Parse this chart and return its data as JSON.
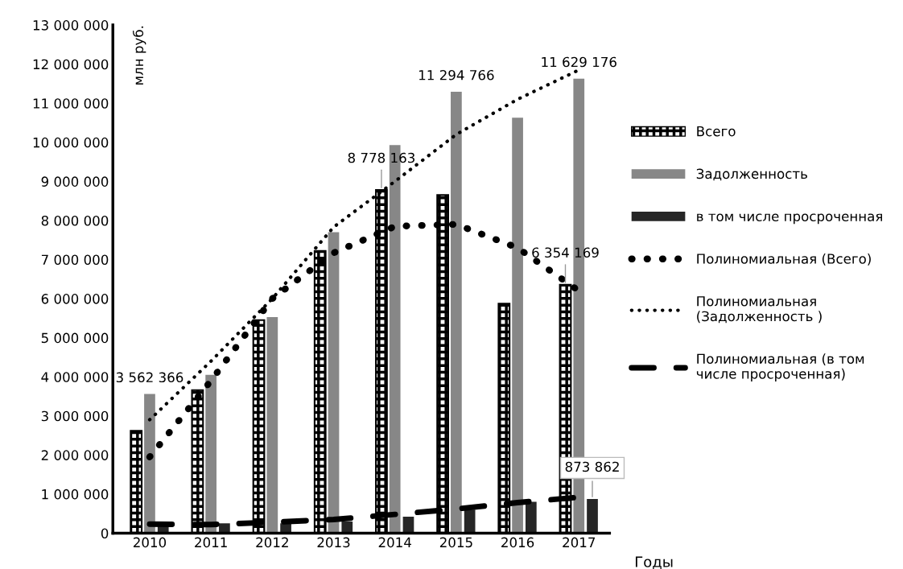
{
  "chart_data": {
    "type": "bar",
    "ylabel": "млн руб.",
    "xlabel": "Годы",
    "categories": [
      "2010",
      "2011",
      "2012",
      "2013",
      "2014",
      "2015",
      "2016",
      "2017"
    ],
    "series": [
      {
        "name": "Всего",
        "color": "#000000",
        "values": [
          2620000,
          3660000,
          5450000,
          7220000,
          8778163,
          8650000,
          5870000,
          6354169
        ],
        "value_labels": [
          null,
          null,
          null,
          null,
          "8 778 163",
          null,
          null,
          "6 354 169"
        ]
      },
      {
        "name": "Задолженность",
        "color": "#878787",
        "values": [
          3562366,
          4050000,
          5530000,
          7700000,
          9930000,
          11294766,
          10630000,
          11629176
        ],
        "value_labels": [
          "3 562 366",
          null,
          null,
          null,
          null,
          "11 294 766",
          null,
          "11 629 176"
        ]
      },
      {
        "name": "в том числе просроченная",
        "color": "#262626",
        "values": [
          200000,
          250000,
          250000,
          300000,
          420000,
          600000,
          800000,
          873862
        ],
        "value_labels": [
          null,
          null,
          null,
          null,
          null,
          null,
          null,
          "873 862"
        ]
      },
      {
        "name": "Полиномиальная (Всего)",
        "type": "line",
        "color": "#000000",
        "line_style": "dotted",
        "values": [
          1950000,
          3900000,
          6000000,
          7170000,
          7850000,
          7900000,
          7300000,
          6200000
        ]
      },
      {
        "name": "Полиномиальная (Задолженность )",
        "type": "line",
        "color": "#000000",
        "line_style": "dotted",
        "values": [
          2900000,
          4400000,
          6000000,
          7830000,
          9000000,
          10200000,
          11100000,
          11850000
        ]
      },
      {
        "name": "Полиномиальная (в том числе просроченная)",
        "type": "line",
        "color": "#000000",
        "line_style": "dashed",
        "values": [
          230000,
          220000,
          280000,
          350000,
          480000,
          620000,
          780000,
          920000
        ]
      }
    ],
    "ylim": [
      0,
      13000000
    ],
    "yticks": [
      0,
      {
        "value": 1000000,
        "label": "1 000 000"
      },
      {
        "value": 2000000,
        "label": "2 000 000"
      },
      {
        "value": 3000000,
        "label": "3 000 000"
      },
      {
        "value": 4000000,
        "label": "4 000 000"
      },
      {
        "value": 5000000,
        "label": "5 000 000"
      },
      {
        "value": 6000000,
        "label": "6 000 000"
      },
      {
        "value": 7000000,
        "label": "7 000 000"
      },
      {
        "value": 8000000,
        "label": "8 000 000"
      },
      {
        "value": 9000000,
        "label": "9 000 000"
      },
      {
        "value": 10000000,
        "label": "10 000 000"
      },
      {
        "value": 11000000,
        "label": "11 000 000"
      },
      {
        "value": 12000000,
        "label": "12 000 000"
      },
      {
        "value": 13000000,
        "label": "13 000 000"
      }
    ],
    "grid": false,
    "legend": "right"
  }
}
